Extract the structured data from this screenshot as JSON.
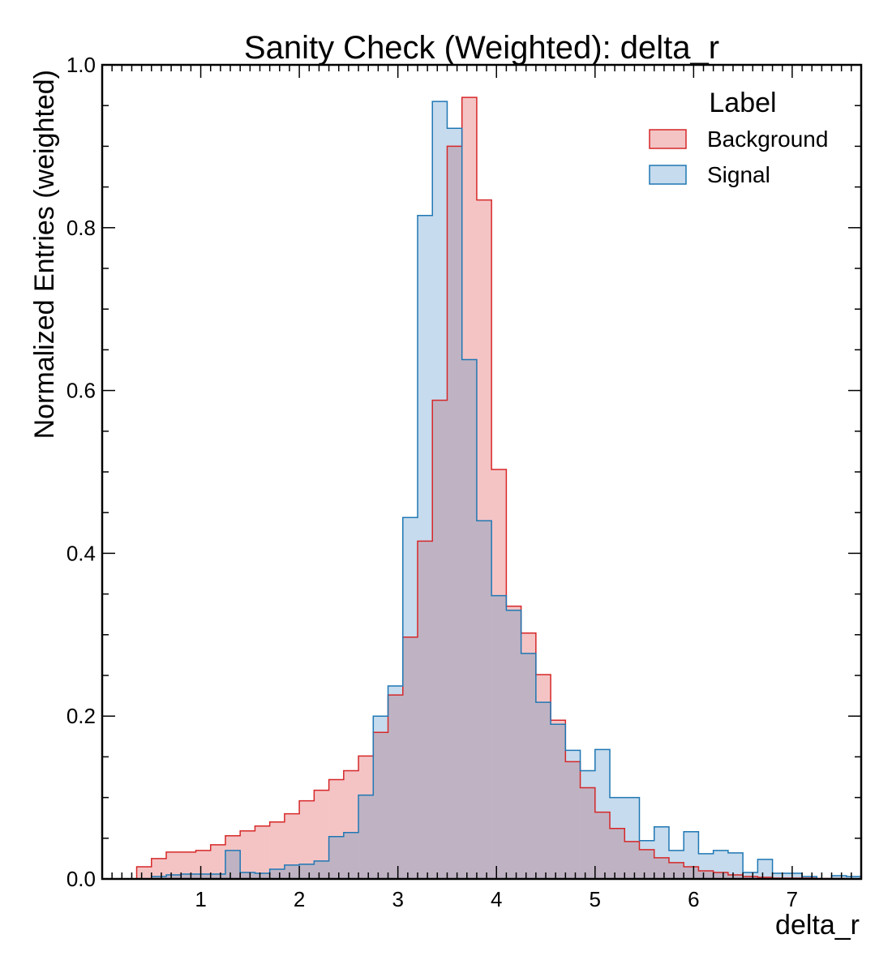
{
  "chart_data": {
    "type": "histogram",
    "title": "Sanity Check (Weighted): delta_r",
    "xlabel": "delta_r",
    "ylabel": "Normalized Entries (weighted)",
    "xlim": [
      0,
      7.7
    ],
    "ylim": [
      0,
      1.0
    ],
    "x_ticks": [
      "1",
      "2",
      "3",
      "4",
      "5",
      "6",
      "7"
    ],
    "y_ticks": [
      "0.0",
      "0.2",
      "0.4",
      "0.6",
      "0.8",
      "1.0"
    ],
    "grid": false,
    "legend": {
      "title": "Label",
      "placement": "top-right",
      "entries": [
        "Background",
        "Signal"
      ]
    },
    "bin_start": 0.35,
    "bin_width": 0.15,
    "series": [
      {
        "name": "Background",
        "line_color": "#d62728",
        "fill_color": "#f4c4c5",
        "values": [
          0.015,
          0.025,
          0.033,
          0.033,
          0.035,
          0.042,
          0.053,
          0.059,
          0.065,
          0.07,
          0.08,
          0.096,
          0.109,
          0.122,
          0.133,
          0.151,
          0.18,
          0.226,
          0.297,
          0.415,
          0.588,
          0.9,
          0.96,
          0.834,
          0.503,
          0.335,
          0.302,
          0.251,
          0.195,
          0.144,
          0.112,
          0.082,
          0.062,
          0.046,
          0.036,
          0.026,
          0.02,
          0.015,
          0.01,
          0.008,
          0.005,
          0.003,
          0.002,
          0.001,
          0.001,
          0.001,
          0.0005,
          0.0005,
          0.0003,
          0.0002
        ]
      },
      {
        "name": "Signal",
        "line_color": "#1f77b4",
        "fill_color": "#c6dbed",
        "values": [
          0.0,
          0.003,
          0.005,
          0.006,
          0.006,
          0.006,
          0.035,
          0.008,
          0.007,
          0.012,
          0.017,
          0.018,
          0.022,
          0.052,
          0.057,
          0.103,
          0.2,
          0.237,
          0.444,
          0.815,
          0.955,
          0.922,
          0.638,
          0.44,
          0.348,
          0.33,
          0.277,
          0.217,
          0.19,
          0.158,
          0.133,
          0.159,
          0.1,
          0.1,
          0.047,
          0.064,
          0.035,
          0.058,
          0.031,
          0.035,
          0.032,
          0.008,
          0.024,
          0.007,
          0.007,
          0.003,
          0.0,
          0.004,
          0.003,
          0.002,
          0.0,
          0.0,
          0.0,
          0.0,
          0.0,
          0.0
        ]
      }
    ],
    "overlap_color": "#bfb3c3"
  }
}
